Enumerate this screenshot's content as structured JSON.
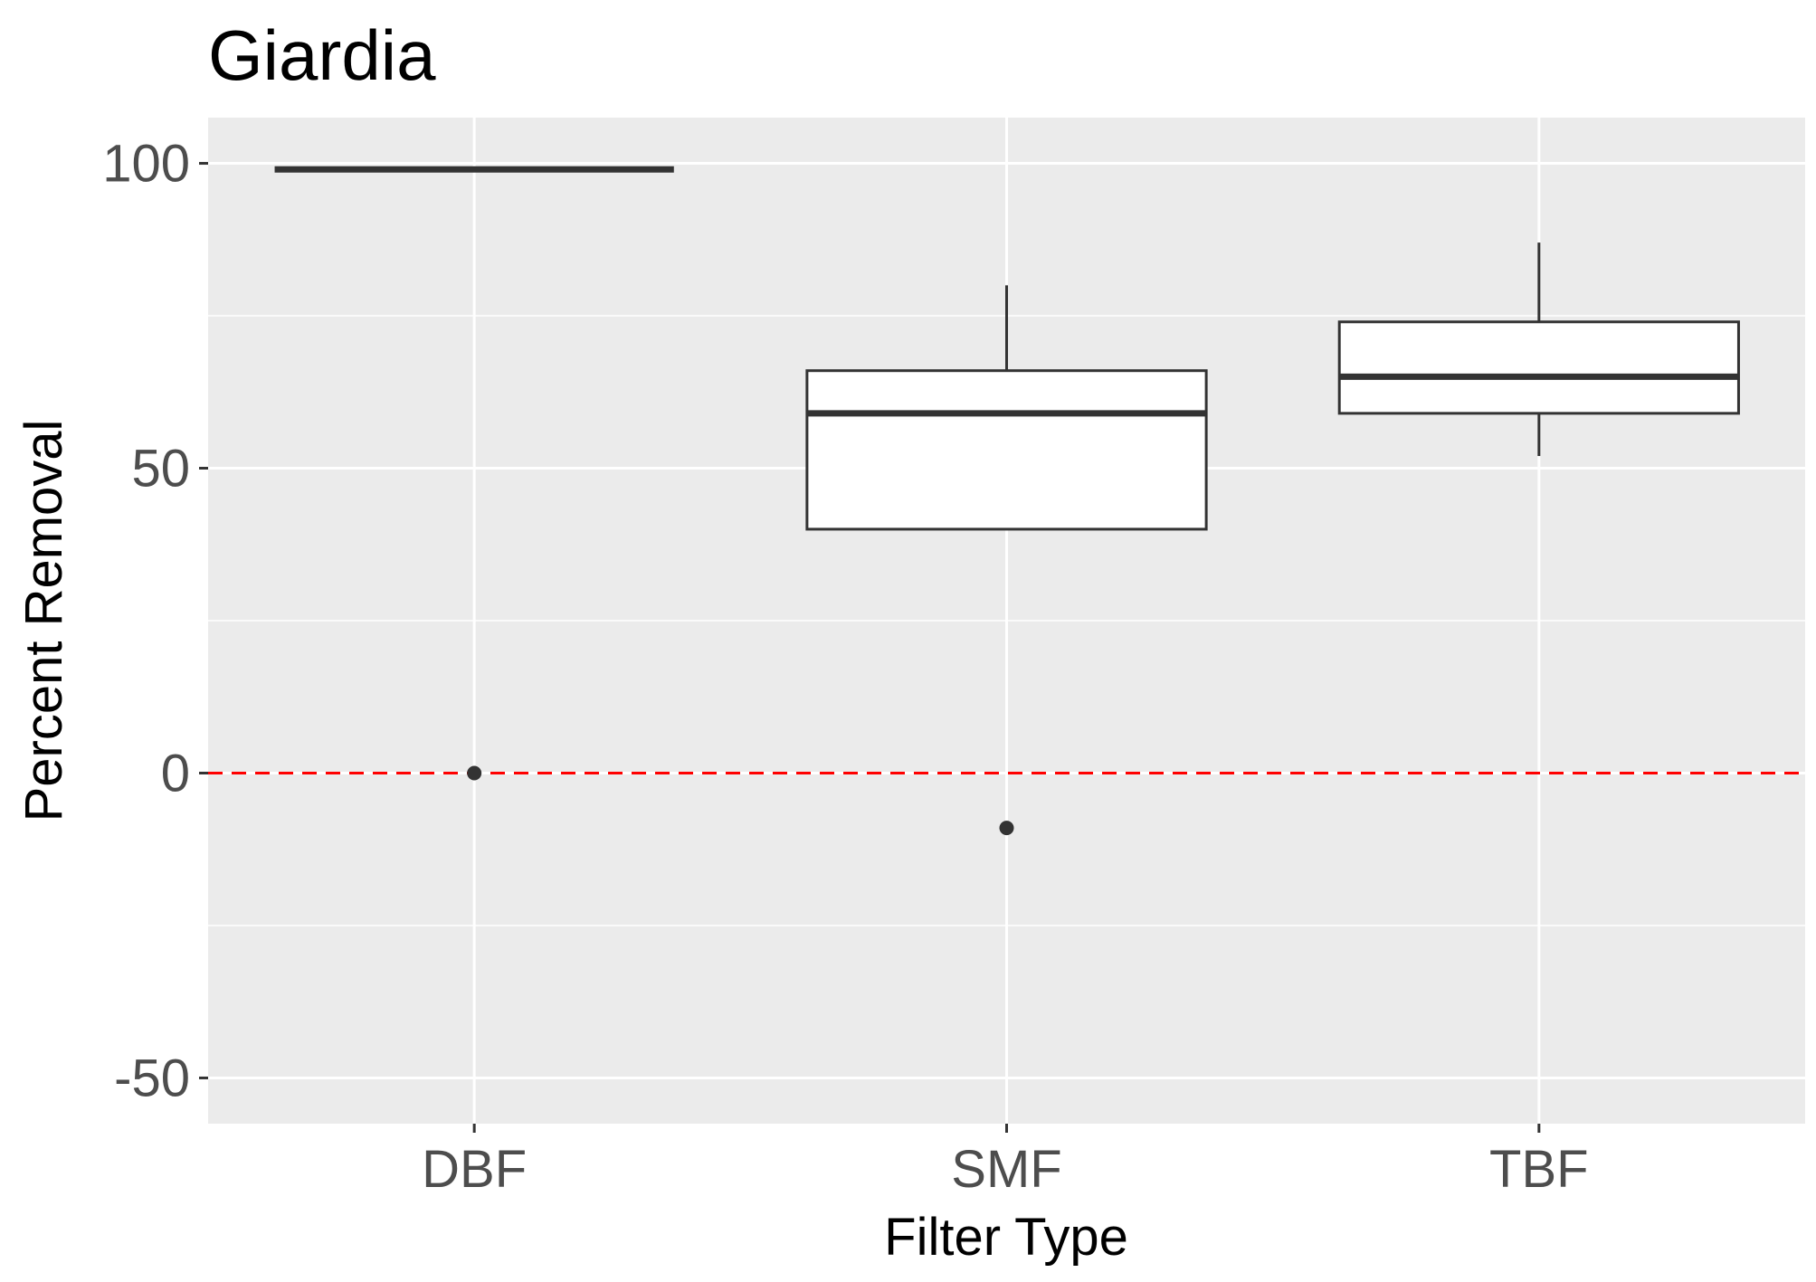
{
  "chart_data": {
    "type": "box",
    "title": "Giardia",
    "xlabel": "Filter Type",
    "ylabel": "Percent Removal",
    "categories": [
      "DBF",
      "SMF",
      "TBF"
    ],
    "ylim": [
      -57.5,
      107.5
    ],
    "yticks": [
      -50,
      0,
      50,
      100
    ],
    "yticks_minor": [
      -25,
      25,
      75
    ],
    "grid": true,
    "boxes": [
      {
        "category": "DBF",
        "lower_whisker": 99,
        "q1": 99,
        "median": 99,
        "q3": 99,
        "upper_whisker": 99,
        "outliers": [
          0
        ]
      },
      {
        "category": "SMF",
        "lower_whisker": 40,
        "q1": 40,
        "median": 59,
        "q3": 66,
        "upper_whisker": 80,
        "outliers": [
          -9
        ]
      },
      {
        "category": "TBF",
        "lower_whisker": 52,
        "q1": 59,
        "median": 65,
        "q3": 74,
        "upper_whisker": 87,
        "outliers": []
      }
    ],
    "reference_line": {
      "y": 0,
      "color": "#ff0000",
      "style": "dashed"
    },
    "colors": {
      "panel_background": "#ebebeb",
      "grid": "#ffffff",
      "box_fill": "#ffffff",
      "box_stroke": "#333333"
    }
  }
}
